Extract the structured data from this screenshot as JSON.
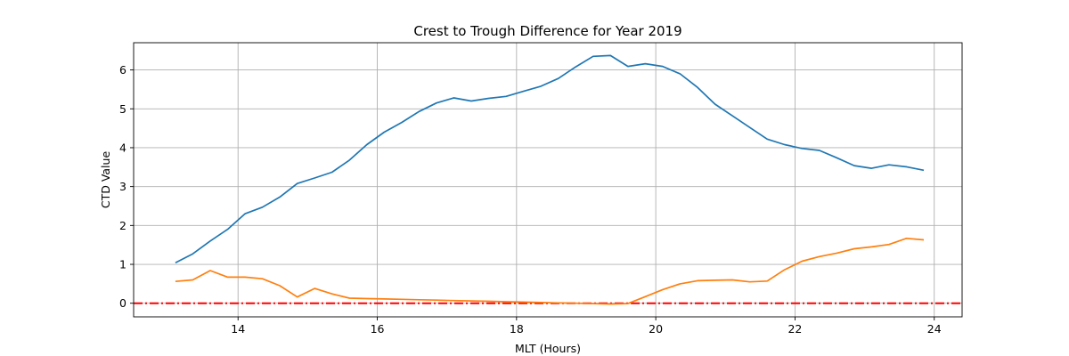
{
  "chart_data": {
    "type": "line",
    "title": "Crest to Trough Difference for Year 2019",
    "xlabel": "MLT (Hours)",
    "ylabel": "CTD Value",
    "xlim": [
      12.5,
      24.4
    ],
    "ylim": [
      -0.35,
      6.7
    ],
    "xticks": [
      14,
      16,
      18,
      20,
      22,
      24
    ],
    "yticks": [
      0,
      1,
      2,
      3,
      4,
      5,
      6
    ],
    "grid": true,
    "reference_line": {
      "y": 0,
      "color": "#ff0000",
      "style": "dash-dot"
    },
    "series": [
      {
        "color": "#1f77b4",
        "x": [
          13.1,
          13.35,
          13.6,
          13.85,
          14.1,
          14.35,
          14.6,
          14.85,
          15.1,
          15.35,
          15.6,
          15.85,
          16.1,
          16.35,
          16.6,
          16.85,
          17.1,
          17.35,
          17.6,
          17.85,
          18.1,
          18.35,
          18.6,
          18.85,
          19.1,
          19.35,
          19.6,
          19.85,
          20.1,
          20.35,
          20.6,
          20.85,
          21.1,
          21.35,
          21.6,
          21.85,
          22.1,
          22.35,
          22.6,
          22.85,
          23.1,
          23.35,
          23.6,
          23.85
        ],
        "y": [
          1.04,
          1.27,
          1.6,
          1.9,
          2.3,
          2.47,
          2.73,
          3.08,
          3.22,
          3.37,
          3.68,
          4.08,
          4.4,
          4.65,
          4.93,
          5.15,
          5.28,
          5.2,
          5.27,
          5.32,
          5.45,
          5.58,
          5.78,
          6.08,
          6.35,
          6.37,
          6.09,
          6.16,
          6.09,
          5.9,
          5.55,
          5.12,
          4.82,
          4.52,
          4.22,
          4.08,
          3.98,
          3.93,
          3.74,
          3.54,
          3.47,
          3.56,
          3.51,
          3.42
        ]
      },
      {
        "color": "#ff7f0e",
        "x": [
          13.1,
          13.35,
          13.6,
          13.85,
          14.1,
          14.35,
          14.6,
          14.85,
          15.1,
          15.35,
          15.6,
          15.85,
          16.1,
          16.35,
          16.6,
          16.85,
          17.1,
          17.35,
          17.6,
          17.85,
          18.1,
          18.35,
          18.6,
          18.85,
          19.1,
          19.35,
          19.6,
          19.85,
          20.1,
          20.35,
          20.6,
          20.85,
          21.1,
          21.35,
          21.6,
          21.85,
          22.1,
          22.35,
          22.6,
          22.85,
          23.1,
          23.35,
          23.6,
          23.85
        ],
        "y": [
          0.56,
          0.6,
          0.84,
          0.67,
          0.67,
          0.63,
          0.45,
          0.16,
          0.38,
          0.24,
          0.13,
          0.12,
          0.11,
          0.1,
          0.09,
          0.08,
          0.07,
          0.06,
          0.05,
          0.04,
          0.03,
          0.02,
          0.01,
          0.0,
          -0.01,
          -0.02,
          -0.01,
          0.17,
          0.35,
          0.5,
          0.58,
          0.59,
          0.6,
          0.55,
          0.57,
          0.86,
          1.08,
          1.2,
          1.29,
          1.4,
          1.45,
          1.51,
          1.67,
          1.63
        ]
      }
    ]
  }
}
